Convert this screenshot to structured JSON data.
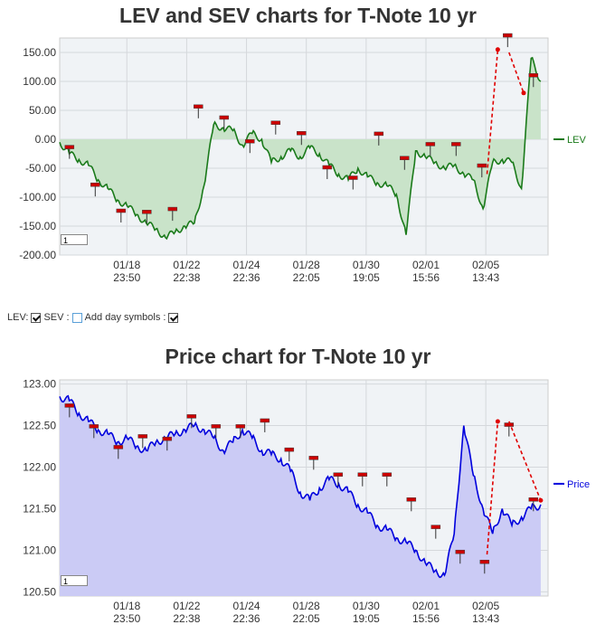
{
  "top_chart": {
    "title": "LEV and SEV charts for T-Note 10 yr",
    "zoom_value": "1"
  },
  "bottom_chart": {
    "title": "Price chart for T-Note 10 yr",
    "zoom_value": "1"
  },
  "controls": {
    "lev_label": "LEV:",
    "lev_checked": true,
    "sev_label": "SEV :",
    "sev_checked": false,
    "day_symbols_label": "Add day symbols :",
    "day_symbols_checked": true
  },
  "chart_data": [
    {
      "type": "area",
      "title": "LEV and SEV charts for T-Note 10 yr",
      "xlabel": "",
      "ylabel": "",
      "ylim": [
        -200,
        175
      ],
      "y_ticks": [
        "150.00",
        "100.00",
        "50.00",
        "0.00",
        "-50.00",
        "-100.00",
        "-150.00",
        "-200.00"
      ],
      "x_ticks": [
        {
          "date": "01/18",
          "time": "23:50"
        },
        {
          "date": "01/22",
          "time": "22:38"
        },
        {
          "date": "01/24",
          "time": "22:36"
        },
        {
          "date": "01/28",
          "time": "22:05"
        },
        {
          "date": "01/30",
          "time": "19:05"
        },
        {
          "date": "02/01",
          "time": "15:56"
        },
        {
          "date": "02/05",
          "time": "13:43"
        }
      ],
      "grid": true,
      "legend_position": "right",
      "colors": {
        "line": "#1a7a1a",
        "fill": "#c9e3c9",
        "marker": "#cc0000",
        "arrow": "#e00000"
      },
      "series": [
        {
          "name": "LEV",
          "x": [
            0,
            0.02,
            0.04,
            0.06,
            0.08,
            0.1,
            0.12,
            0.14,
            0.16,
            0.18,
            0.2,
            0.22,
            0.24,
            0.26,
            0.28,
            0.3,
            0.32,
            0.34,
            0.36,
            0.38,
            0.4,
            0.42,
            0.44,
            0.46,
            0.48,
            0.5,
            0.52,
            0.54,
            0.56,
            0.58,
            0.6,
            0.62,
            0.64,
            0.66,
            0.68,
            0.7,
            0.72,
            0.74,
            0.76,
            0.78,
            0.8,
            0.82,
            0.84,
            0.86,
            0.88,
            0.9,
            0.92,
            0.94,
            0.96,
            0.98,
            1.0
          ],
          "values": [
            -5,
            -25,
            -35,
            -45,
            -70,
            -85,
            -105,
            -115,
            -130,
            -145,
            -155,
            -170,
            -160,
            -150,
            -145,
            -80,
            25,
            20,
            15,
            -10,
            10,
            0,
            -40,
            -30,
            -20,
            -30,
            -15,
            -25,
            -45,
            -60,
            -70,
            -50,
            -65,
            -75,
            -80,
            -95,
            -165,
            -20,
            -30,
            -40,
            -50,
            -45,
            -60,
            -70,
            -120,
            -40,
            -35,
            -40,
            -85,
            140,
            100
          ]
        }
      ],
      "markers": [
        {
          "x": "01/17",
          "y": -15
        },
        {
          "x": "01/18",
          "y": -80
        },
        {
          "x": "01/19",
          "y": -125
        },
        {
          "x": "01/19",
          "y": -127
        },
        {
          "x": "01/21",
          "y": -122
        },
        {
          "x": "01/22",
          "y": 55
        },
        {
          "x": "01/23",
          "y": 36
        },
        {
          "x": "01/26",
          "y": -5
        },
        {
          "x": "01/27",
          "y": 27
        },
        {
          "x": "01/27",
          "y": 9
        },
        {
          "x": "01/29",
          "y": -50
        },
        {
          "x": "01/30",
          "y": -68
        },
        {
          "x": "01/31",
          "y": 8
        },
        {
          "x": "02/01",
          "y": -34
        },
        {
          "x": "02/02",
          "y": -10
        },
        {
          "x": "02/02",
          "y": -10
        },
        {
          "x": "02/03",
          "y": -47
        },
        {
          "x": "02/05",
          "y": 178
        },
        {
          "x": "02/06",
          "y": 109
        }
      ]
    },
    {
      "type": "area",
      "title": "Price chart for T-Note 10 yr",
      "xlabel": "",
      "ylabel": "",
      "ylim": [
        120.45,
        123.05
      ],
      "y_ticks": [
        "123.00",
        "122.50",
        "122.00",
        "121.50",
        "121.00",
        "120.50"
      ],
      "x_ticks": [
        {
          "date": "01/18",
          "time": "23:50"
        },
        {
          "date": "01/22",
          "time": "22:38"
        },
        {
          "date": "01/24",
          "time": "22:36"
        },
        {
          "date": "01/28",
          "time": "22:05"
        },
        {
          "date": "01/30",
          "time": "19:05"
        },
        {
          "date": "02/01",
          "time": "15:56"
        },
        {
          "date": "02/05",
          "time": "13:43"
        }
      ],
      "grid": true,
      "legend_position": "right",
      "colors": {
        "line": "#0000dd",
        "fill": "#cbcbf5",
        "marker": "#cc0000",
        "arrow": "#e00000"
      },
      "series": [
        {
          "name": "Price",
          "x": [
            0,
            0.02,
            0.04,
            0.06,
            0.08,
            0.1,
            0.12,
            0.14,
            0.16,
            0.18,
            0.2,
            0.22,
            0.24,
            0.26,
            0.28,
            0.3,
            0.32,
            0.34,
            0.36,
            0.38,
            0.4,
            0.42,
            0.44,
            0.46,
            0.48,
            0.5,
            0.52,
            0.54,
            0.56,
            0.58,
            0.6,
            0.62,
            0.64,
            0.66,
            0.68,
            0.7,
            0.72,
            0.74,
            0.76,
            0.78,
            0.8,
            0.82,
            0.84,
            0.86,
            0.88,
            0.9,
            0.92,
            0.94,
            0.96,
            0.98,
            1.0
          ],
          "values": [
            122.85,
            122.8,
            122.65,
            122.55,
            122.45,
            122.4,
            122.3,
            122.35,
            122.25,
            122.2,
            122.3,
            122.35,
            122.4,
            122.45,
            122.5,
            122.45,
            122.35,
            122.2,
            122.3,
            122.45,
            122.35,
            122.2,
            122.15,
            122.1,
            121.95,
            121.7,
            121.6,
            121.75,
            121.85,
            121.8,
            121.7,
            121.55,
            121.45,
            121.3,
            121.25,
            121.15,
            121.1,
            121.0,
            120.85,
            120.75,
            120.7,
            121.2,
            122.5,
            121.9,
            121.5,
            121.2,
            121.5,
            121.3,
            121.4,
            121.5,
            121.55
          ]
        }
      ],
      "markers": [
        {
          "x": "01/17",
          "y": 122.73
        },
        {
          "x": "01/18",
          "y": 122.48
        },
        {
          "x": "01/19",
          "y": 122.23
        },
        {
          "x": "01/19",
          "y": 122.36
        },
        {
          "x": "01/21",
          "y": 122.33
        },
        {
          "x": "01/22",
          "y": 122.6
        },
        {
          "x": "01/23",
          "y": 122.48
        },
        {
          "x": "01/26",
          "y": 122.48
        },
        {
          "x": "01/27",
          "y": 122.55
        },
        {
          "x": "01/27",
          "y": 122.2
        },
        {
          "x": "01/27",
          "y": 122.1
        },
        {
          "x": "01/29",
          "y": 121.9
        },
        {
          "x": "01/30",
          "y": 121.9
        },
        {
          "x": "01/31",
          "y": 121.9
        },
        {
          "x": "02/01",
          "y": 121.6
        },
        {
          "x": "02/01",
          "y": 121.27
        },
        {
          "x": "02/02",
          "y": 120.97
        },
        {
          "x": "02/03",
          "y": 120.85
        },
        {
          "x": "02/05",
          "y": 122.5
        },
        {
          "x": "02/06",
          "y": 121.6
        }
      ]
    }
  ]
}
